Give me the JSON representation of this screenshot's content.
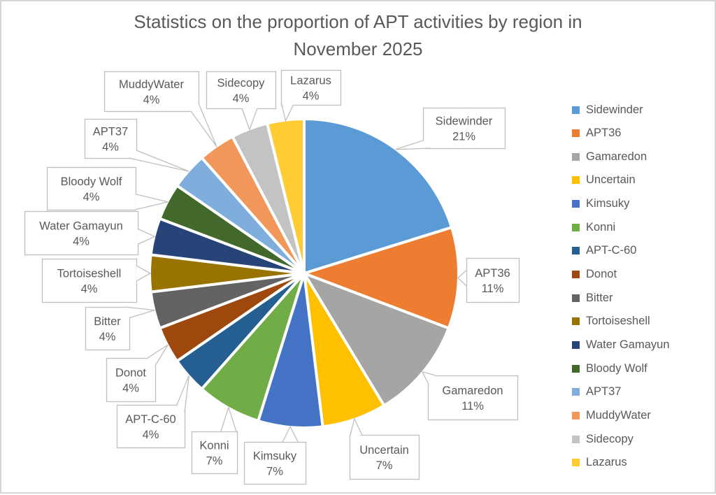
{
  "window": {
    "background": "#FFFFFF",
    "border_color": "#D6D6D6"
  },
  "chart_data": {
    "type": "pie",
    "title": "Statistics on the proportion of APT activities by region in November 2025",
    "title_lines": [
      "Statistics on the proportion of APT activities by region in",
      "November 2025"
    ],
    "legend_position": "right",
    "direction": "clockwise",
    "start_angle_deg": 0,
    "labels": [
      "Sidewinder",
      "APT36",
      "Gamaredon",
      "Uncertain",
      "Kimsuky",
      "Konni",
      "APT-C-60",
      "Donot",
      "Bitter",
      "Tortoiseshell",
      "Water Gamayun",
      "Bloody Wolf",
      "APT37",
      "MuddyWater",
      "Sidecopy",
      "Lazarus"
    ],
    "values": [
      21,
      11,
      11,
      7,
      7,
      7,
      4,
      4,
      4,
      4,
      4,
      4,
      4,
      4,
      4,
      4
    ],
    "percent_labels": [
      "21%",
      "11%",
      "11%",
      "7%",
      "7%",
      "7%",
      "4%",
      "4%",
      "4%",
      "4%",
      "4%",
      "4%",
      "4%",
      "4%",
      "4%",
      "4%"
    ],
    "colors": [
      "#5B9BD5",
      "#ED7D31",
      "#A5A5A5",
      "#FFC000",
      "#4472C4",
      "#70AD47",
      "#255E91",
      "#9E480E",
      "#636363",
      "#997300",
      "#264478",
      "#43682B",
      "#7FAEDC",
      "#F1975A",
      "#C3C3C3",
      "#FFCD33"
    ],
    "data_label_style": "callout boxes with leader lines"
  },
  "styles": {
    "title_color": "#595959",
    "label_text_color": "#595959",
    "callout_fill": "#FFFFFF",
    "callout_border_color": "#BFBFBF",
    "slice_gap_color": "#FFFFFF",
    "legend_text_color": "#595959"
  }
}
